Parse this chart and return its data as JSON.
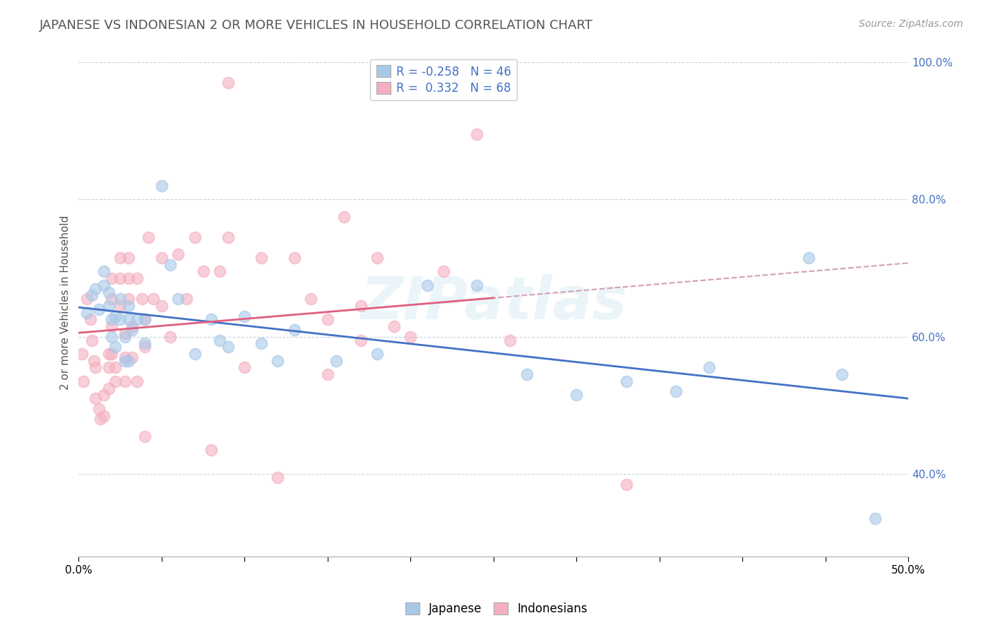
{
  "title": "JAPANESE VS INDONESIAN 2 OR MORE VEHICLES IN HOUSEHOLD CORRELATION CHART",
  "source": "Source: ZipAtlas.com",
  "ylabel": "2 or more Vehicles in Household",
  "watermark": "ZIPatlas",
  "legend_R_j": "-0.258",
  "legend_N_j": "46",
  "legend_R_i": "0.332",
  "legend_N_i": "68",
  "japanese_scatter_color": "#a8c8e8",
  "indonesian_scatter_color": "#f4b0c0",
  "japanese_line_color": "#4472c4",
  "indonesian_line_color": "#e06080",
  "dashed_line_color": "#d4a0b0",
  "xlim": [
    0.0,
    0.5
  ],
  "ylim": [
    0.28,
    1.02
  ],
  "yticks": [
    0.4,
    0.6,
    0.8,
    1.0
  ],
  "ytick_labels": [
    "40.0%",
    "60.0%",
    "80.0%",
    "100.0%"
  ],
  "xticks": [
    0.0,
    0.05,
    0.1,
    0.15,
    0.2,
    0.25,
    0.3,
    0.35,
    0.4,
    0.45,
    0.5
  ],
  "xtick_labels_show": [
    "0.0%",
    "50.0%"
  ],
  "japanese_x": [
    0.005,
    0.008,
    0.01,
    0.012,
    0.015,
    0.015,
    0.018,
    0.018,
    0.02,
    0.02,
    0.022,
    0.022,
    0.025,
    0.025,
    0.028,
    0.028,
    0.03,
    0.03,
    0.03,
    0.032,
    0.035,
    0.04,
    0.04,
    0.05,
    0.055,
    0.06,
    0.07,
    0.08,
    0.085,
    0.09,
    0.1,
    0.11,
    0.12,
    0.13,
    0.155,
    0.18,
    0.21,
    0.24,
    0.27,
    0.3,
    0.33,
    0.36,
    0.38,
    0.44,
    0.46,
    0.48
  ],
  "japanese_y": [
    0.635,
    0.66,
    0.67,
    0.64,
    0.695,
    0.675,
    0.665,
    0.645,
    0.625,
    0.6,
    0.585,
    0.63,
    0.655,
    0.625,
    0.6,
    0.565,
    0.645,
    0.625,
    0.565,
    0.61,
    0.625,
    0.625,
    0.59,
    0.82,
    0.705,
    0.655,
    0.575,
    0.625,
    0.595,
    0.585,
    0.63,
    0.59,
    0.565,
    0.61,
    0.565,
    0.575,
    0.675,
    0.675,
    0.545,
    0.515,
    0.535,
    0.52,
    0.555,
    0.715,
    0.545,
    0.335
  ],
  "indonesian_x": [
    0.002,
    0.003,
    0.005,
    0.007,
    0.008,
    0.009,
    0.01,
    0.01,
    0.012,
    0.013,
    0.015,
    0.015,
    0.018,
    0.018,
    0.018,
    0.02,
    0.02,
    0.02,
    0.02,
    0.022,
    0.022,
    0.025,
    0.025,
    0.025,
    0.028,
    0.028,
    0.028,
    0.03,
    0.03,
    0.03,
    0.032,
    0.032,
    0.035,
    0.035,
    0.038,
    0.04,
    0.04,
    0.04,
    0.042,
    0.045,
    0.05,
    0.05,
    0.055,
    0.06,
    0.065,
    0.07,
    0.075,
    0.08,
    0.085,
    0.09,
    0.1,
    0.11,
    0.12,
    0.13,
    0.14,
    0.15,
    0.16,
    0.17,
    0.18,
    0.19,
    0.2,
    0.22,
    0.24,
    0.26,
    0.15,
    0.17,
    0.33,
    0.09
  ],
  "indonesian_y": [
    0.575,
    0.535,
    0.655,
    0.625,
    0.595,
    0.565,
    0.555,
    0.51,
    0.495,
    0.48,
    0.515,
    0.485,
    0.575,
    0.555,
    0.525,
    0.685,
    0.655,
    0.615,
    0.575,
    0.555,
    0.535,
    0.715,
    0.685,
    0.645,
    0.605,
    0.57,
    0.535,
    0.715,
    0.685,
    0.655,
    0.615,
    0.57,
    0.535,
    0.685,
    0.655,
    0.625,
    0.585,
    0.455,
    0.745,
    0.655,
    0.715,
    0.645,
    0.6,
    0.72,
    0.655,
    0.745,
    0.695,
    0.435,
    0.695,
    0.745,
    0.555,
    0.715,
    0.395,
    0.715,
    0.655,
    0.545,
    0.775,
    0.645,
    0.715,
    0.615,
    0.6,
    0.695,
    0.895,
    0.595,
    0.625,
    0.595,
    0.385,
    0.97
  ],
  "background_color": "#ffffff",
  "grid_color": "#c8d4e0",
  "title_fontsize": 13,
  "axis_fontsize": 11,
  "tick_fontsize": 11,
  "legend_fontsize": 12,
  "source_fontsize": 10,
  "scatter_size": 130,
  "scatter_alpha": 0.6,
  "scatter_edge_width": 1.5
}
